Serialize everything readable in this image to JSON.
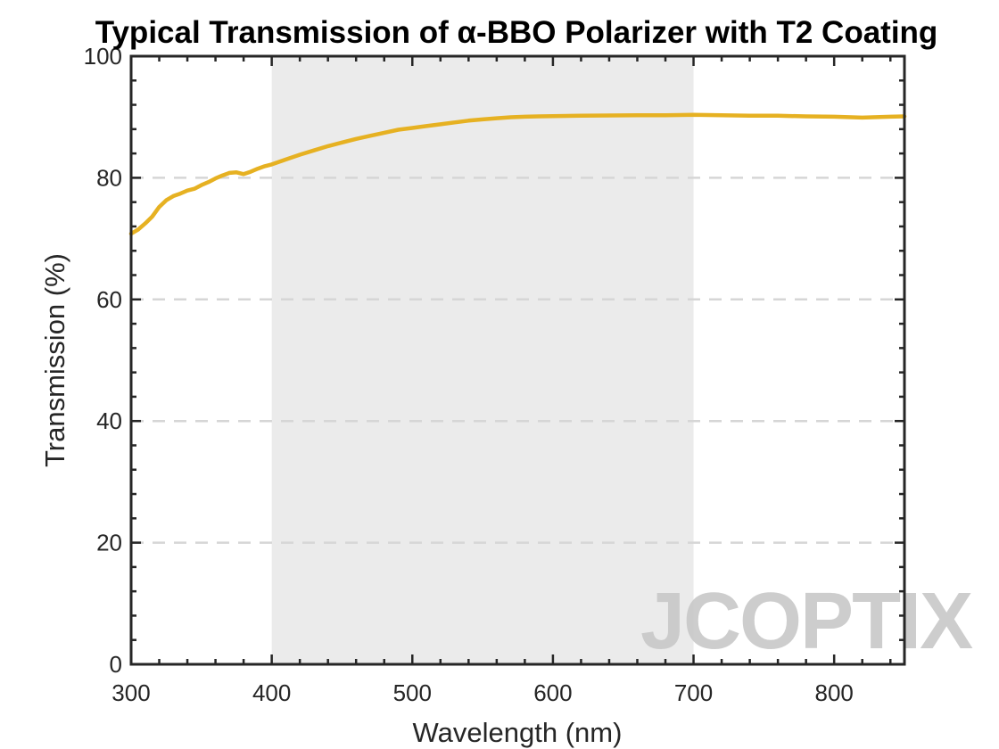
{
  "chart_data": {
    "type": "line",
    "title": "Typical Transmission of α-BBO Polarizer with T2 Coating",
    "xlabel": "Wavelength (nm)",
    "ylabel": "Transmission (%)",
    "xlim": [
      300,
      850
    ],
    "ylim": [
      0,
      100
    ],
    "xticks": [
      "300",
      "400",
      "500",
      "600",
      "700",
      "800"
    ],
    "yticks": [
      "0",
      "20",
      "40",
      "60",
      "80",
      "100"
    ],
    "grid": "horizontal dashed",
    "highlight_band": {
      "x_start": 400,
      "x_end": 700
    },
    "series": [
      {
        "color": "#E6B122",
        "x": [
          300,
          305,
          310,
          315,
          320,
          325,
          330,
          335,
          340,
          345,
          350,
          355,
          360,
          365,
          370,
          375,
          380,
          385,
          390,
          395,
          400,
          410,
          420,
          430,
          440,
          450,
          460,
          470,
          480,
          490,
          500,
          510,
          520,
          530,
          540,
          550,
          560,
          570,
          580,
          590,
          600,
          620,
          640,
          660,
          680,
          700,
          720,
          740,
          760,
          780,
          800,
          820,
          840,
          850
        ],
        "y": [
          70.8,
          71.5,
          72.5,
          73.6,
          75.2,
          76.3,
          77.0,
          77.4,
          77.9,
          78.2,
          78.8,
          79.3,
          79.9,
          80.4,
          80.8,
          80.9,
          80.6,
          81.0,
          81.5,
          81.9,
          82.2,
          83.0,
          83.8,
          84.5,
          85.2,
          85.8,
          86.4,
          86.9,
          87.4,
          87.9,
          88.2,
          88.5,
          88.8,
          89.1,
          89.4,
          89.6,
          89.8,
          89.95,
          90.05,
          90.1,
          90.15,
          90.2,
          90.25,
          90.3,
          90.3,
          90.35,
          90.3,
          90.2,
          90.2,
          90.1,
          90.05,
          89.9,
          90.05,
          90.1
        ]
      }
    ]
  },
  "watermark": {
    "text": "JCOPTIX",
    "color": "#C8C8C8",
    "accent_color": "#F5CFA8"
  }
}
